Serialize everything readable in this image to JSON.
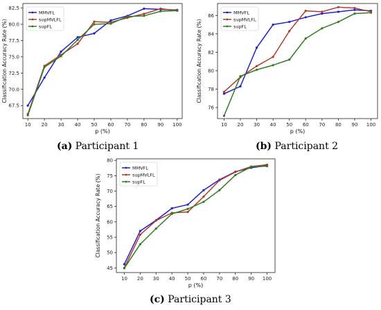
{
  "colors": {
    "MMVFL": "#1f1fcc",
    "supMVLFL": "#b03a2e",
    "supFL": "#2e7d1e"
  },
  "captions": [
    {
      "tag": "(a)",
      "text": "Participant 1"
    },
    {
      "tag": "(b)",
      "text": "Participant 2"
    },
    {
      "tag": "(c)",
      "text": "Participant 3"
    }
  ],
  "chart_data": [
    {
      "type": "line",
      "xlabel": "p (%)",
      "ylabel": "Classification Accuracy Rate (%)",
      "x": [
        10,
        20,
        30,
        40,
        50,
        60,
        70,
        80,
        90,
        100
      ],
      "xticks": [
        10,
        20,
        30,
        40,
        50,
        60,
        70,
        80,
        90,
        100
      ],
      "yticks": [
        67.5,
        70.0,
        72.5,
        75.0,
        77.5,
        80.0,
        82.5
      ],
      "ytick_labels": [
        "67.5",
        "70.0",
        "72.5",
        "75.0",
        "77.5",
        "80.0",
        "82.5"
      ],
      "xlim": [
        7,
        103
      ],
      "ylim": [
        65.5,
        83.2
      ],
      "legend": "top-left",
      "series": [
        {
          "name": "MMVFL",
          "values": [
            67.5,
            71.8,
            75.8,
            78.0,
            78.6,
            80.6,
            81.3,
            82.4,
            82.3,
            82.2
          ]
        },
        {
          "name": "supMVLFL",
          "values": [
            66.2,
            73.6,
            75.3,
            77.0,
            80.4,
            80.3,
            81.0,
            81.6,
            82.4,
            82.1
          ]
        },
        {
          "name": "supFL",
          "values": [
            66.0,
            73.4,
            75.1,
            77.6,
            80.0,
            80.1,
            81.2,
            81.3,
            82.0,
            82.1
          ]
        }
      ]
    },
    {
      "type": "line",
      "xlabel": "p (%)",
      "ylabel": "Classification Accuracy Rate (%)",
      "x": [
        10,
        20,
        30,
        40,
        50,
        60,
        70,
        80,
        90,
        100
      ],
      "xticks": [
        10,
        20,
        30,
        40,
        50,
        60,
        70,
        80,
        90,
        100
      ],
      "yticks": [
        76,
        78,
        80,
        82,
        84,
        86
      ],
      "ytick_labels": [
        "76",
        "78",
        "80",
        "82",
        "84",
        "86"
      ],
      "xlim": [
        6,
        104
      ],
      "ylim": [
        74.8,
        87.3
      ],
      "legend": "top-left",
      "series": [
        {
          "name": "MMVFL",
          "values": [
            77.5,
            78.3,
            82.5,
            85.0,
            85.3,
            85.8,
            86.2,
            86.4,
            86.6,
            86.5
          ]
        },
        {
          "name": "supMVLFL",
          "values": [
            77.7,
            79.3,
            80.5,
            81.5,
            84.3,
            86.5,
            86.4,
            86.9,
            86.8,
            86.4
          ]
        },
        {
          "name": "supFL",
          "values": [
            75.1,
            79.4,
            80.1,
            80.6,
            81.2,
            83.5,
            84.6,
            85.3,
            86.2,
            86.3
          ]
        }
      ]
    },
    {
      "type": "line",
      "xlabel": "p (%)",
      "ylabel": "Classification Accuracy Rate (%)",
      "x": [
        10,
        20,
        30,
        40,
        50,
        60,
        70,
        80,
        90,
        100
      ],
      "xticks": [
        10,
        20,
        30,
        40,
        50,
        60,
        70,
        80,
        90,
        100
      ],
      "yticks": [
        45,
        50,
        55,
        60,
        65,
        70,
        75,
        80
      ],
      "ytick_labels": [
        "45",
        "50",
        "55",
        "60",
        "65",
        "70",
        "75",
        "80"
      ],
      "xlim": [
        5,
        105
      ],
      "ylim": [
        43.5,
        80.5
      ],
      "legend": "top-left",
      "series": [
        {
          "name": "MMVFL",
          "values": [
            46.2,
            57.0,
            60.5,
            64.4,
            65.6,
            70.3,
            73.7,
            76.3,
            77.6,
            78.3
          ]
        },
        {
          "name": "supMVLFL",
          "values": [
            45.0,
            55.8,
            60.4,
            62.9,
            63.2,
            68.2,
            73.5,
            76.2,
            78.0,
            78.6
          ]
        },
        {
          "name": "supFL",
          "values": [
            44.9,
            52.7,
            57.8,
            62.6,
            64.2,
            66.5,
            70.3,
            75.2,
            77.9,
            78.1
          ]
        }
      ]
    }
  ]
}
